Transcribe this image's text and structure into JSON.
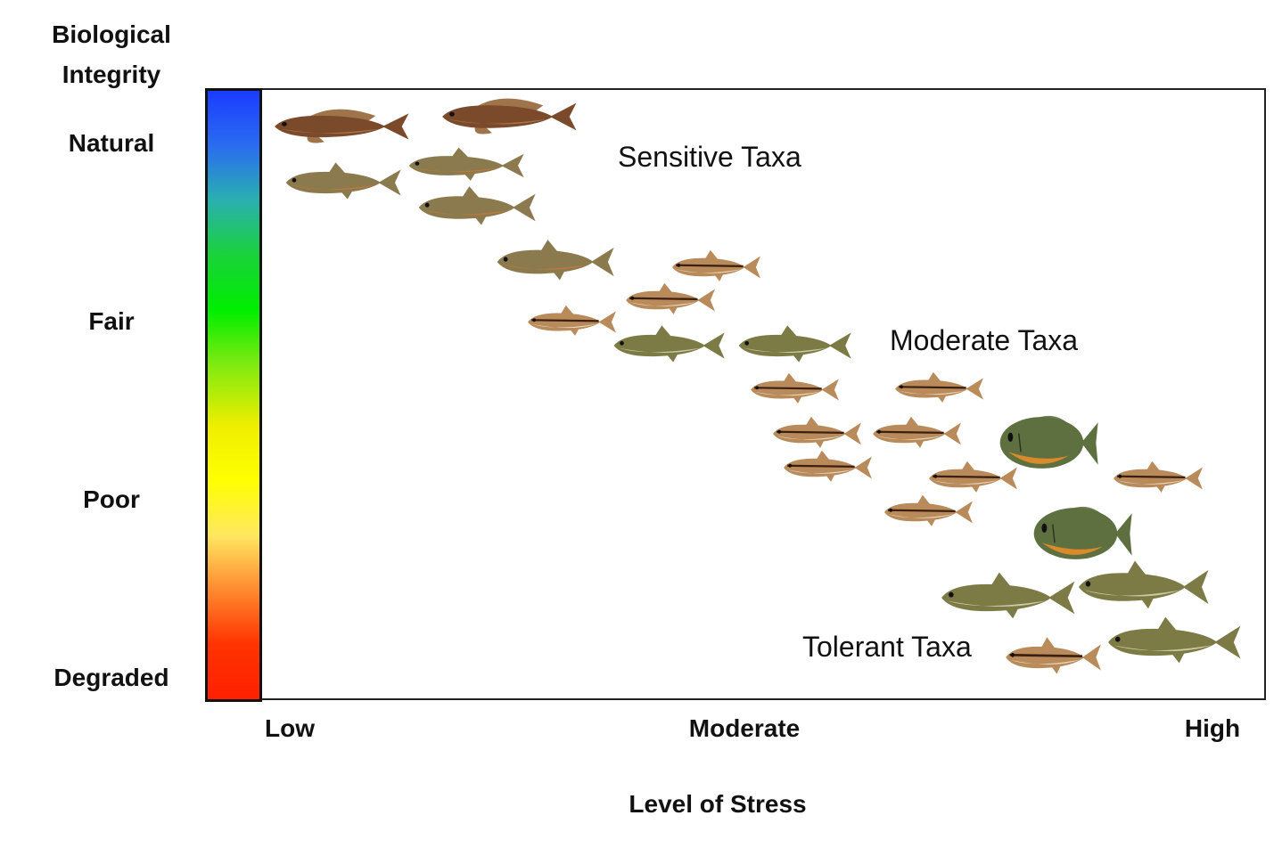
{
  "y_axis": {
    "title_line1": "Biological",
    "title_line2": "Integrity",
    "ticks": [
      "Natural",
      "Fair",
      "Poor",
      "Degraded"
    ]
  },
  "x_axis": {
    "title": "Level of Stress",
    "ticks": [
      "Low",
      "Moderate",
      "High"
    ]
  },
  "groups": {
    "sensitive": "Sensitive Taxa",
    "moderate": "Moderate Taxa",
    "tolerant": "Tolerant Taxa"
  },
  "gradient_colors": [
    "#1a3cff",
    "#2a6cf0",
    "#2ab0b0",
    "#19d23a",
    "#00ee00",
    "#7fea10",
    "#eeee00",
    "#ffff00",
    "#ffe860",
    "#ff8a30",
    "#ff3300",
    "#ff2000"
  ],
  "colors": {
    "sculpin": "#7a4a2a",
    "trout": "#8a7a4e",
    "dace": "#b98a5a",
    "stoneroller": "#7c7b45",
    "sunfish": "#5f7040",
    "stripe": "#3a1f12"
  }
}
